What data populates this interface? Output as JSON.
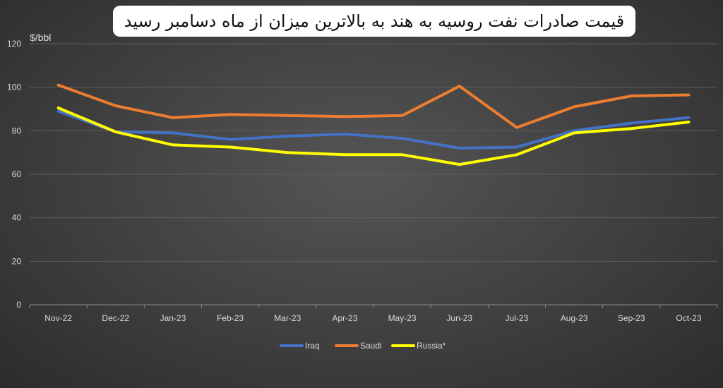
{
  "chart_data": {
    "type": "line",
    "title": "قیمت صادرات نفت روسیه به هند به بالاترین میزان از ماه دسامبر رسید",
    "ylabel": "$/bbl",
    "xlabel": "",
    "categories": [
      "Nov-22",
      "Dec-22",
      "Jan-23",
      "Feb-23",
      "Mar-23",
      "Apr-23",
      "May-23",
      "Jun-23",
      "Jul-23",
      "Aug-23",
      "Sep-23",
      "Oct-23"
    ],
    "ylim": [
      0,
      120
    ],
    "yticks": [
      0,
      20,
      40,
      60,
      80,
      100,
      120
    ],
    "grid": true,
    "legend_position": "bottom",
    "series": [
      {
        "name": "Iraq",
        "color": "#4472c4",
        "values": [
          89,
          79.5,
          79,
          76,
          77.5,
          78.5,
          76.5,
          72,
          72.5,
          80,
          83.5,
          86
        ]
      },
      {
        "name": "Saudi",
        "color": "#ed7d31",
        "values": [
          101,
          91.5,
          86,
          87.5,
          87,
          86.5,
          87,
          100.5,
          81.5,
          91,
          96,
          96.5
        ]
      },
      {
        "name": "Russia*",
        "color": "#ffff00",
        "values": [
          90.5,
          79.5,
          73.5,
          72.5,
          70,
          69,
          69,
          64.5,
          69,
          79,
          81,
          84
        ]
      }
    ]
  }
}
